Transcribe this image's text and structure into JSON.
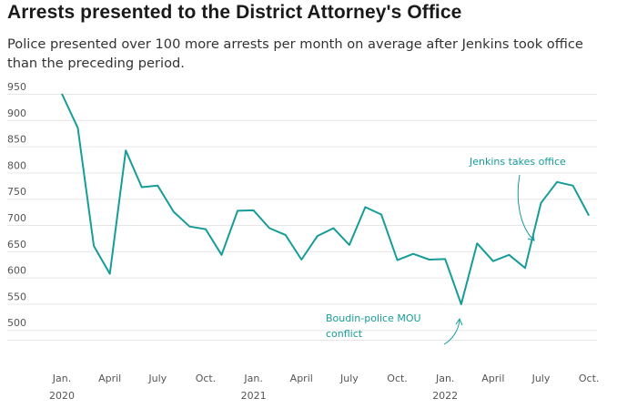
{
  "title": "Arrests presented to the District Attorney's Office",
  "subtitle": "Police presented over 100 more arrests per month on average after Jenkins took office than the preceding period.",
  "colors": {
    "line": "#169c99",
    "grid": "#e6e6e6",
    "annotation": "#169c99"
  },
  "chart_data": {
    "type": "line",
    "title": "Arrests presented to the District Attorney's Office",
    "xlabel": "",
    "ylabel": "",
    "ylim": [
      490,
      960
    ],
    "yticks": [
      500,
      550,
      600,
      650,
      700,
      750,
      800,
      850,
      900,
      950
    ],
    "x_index_start": "2020-01",
    "x_ticks": [
      {
        "index": 0,
        "label": "Jan.",
        "year": "2020"
      },
      {
        "index": 3,
        "label": "April"
      },
      {
        "index": 6,
        "label": "July"
      },
      {
        "index": 9,
        "label": "Oct."
      },
      {
        "index": 12,
        "label": "Jan.",
        "year": "2021"
      },
      {
        "index": 15,
        "label": "April"
      },
      {
        "index": 18,
        "label": "July"
      },
      {
        "index": 21,
        "label": "Oct."
      },
      {
        "index": 24,
        "label": "Jan.",
        "year": "2022"
      },
      {
        "index": 27,
        "label": "April"
      },
      {
        "index": 30,
        "label": "July"
      },
      {
        "index": 33,
        "label": "Oct."
      }
    ],
    "series": [
      {
        "name": "Arrests presented",
        "values": [
          950,
          885,
          660,
          607,
          842,
          772,
          775,
          725,
          697,
          692,
          643,
          727,
          728,
          694,
          681,
          634,
          679,
          694,
          662,
          734,
          720,
          633,
          645,
          634,
          635,
          549,
          665,
          631,
          643,
          618,
          742,
          782,
          775,
          718
        ]
      }
    ],
    "annotations": [
      {
        "text": [
          "Jenkins takes office"
        ],
        "index": 29.5
      },
      {
        "text": [
          "Boudin-police MOU",
          "conflict"
        ],
        "index": 25
      }
    ]
  }
}
